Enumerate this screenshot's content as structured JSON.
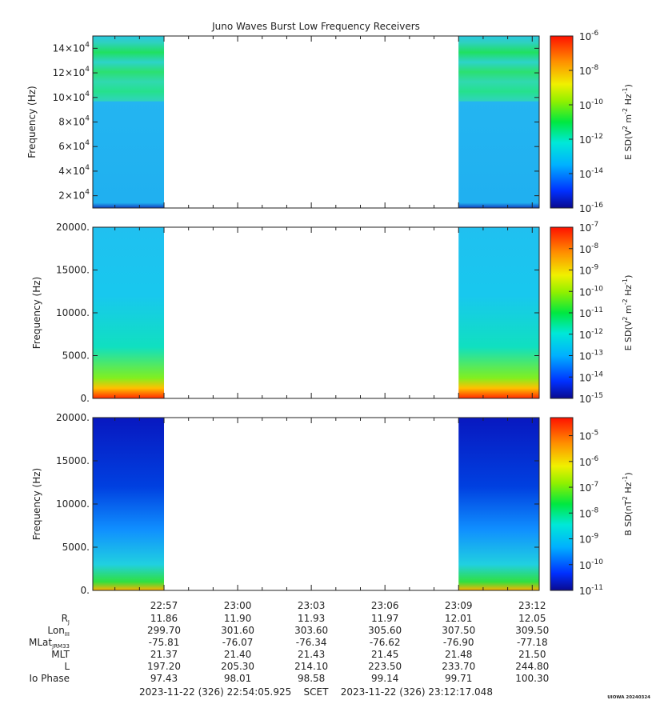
{
  "title": "Juno Waves Burst Low Frequency Receivers",
  "chart_data": [
    {
      "type": "heatmap",
      "panel": "top",
      "ylabel": "Frequency (Hz)",
      "ylim": [
        10000,
        150000
      ],
      "yticks": [
        {
          "value": 20000,
          "mant": "2",
          "exp": "4"
        },
        {
          "value": 40000,
          "mant": "4",
          "exp": "4"
        },
        {
          "value": 60000,
          "mant": "6",
          "exp": "4"
        },
        {
          "value": 80000,
          "mant": "8",
          "exp": "4"
        },
        {
          "value": 100000,
          "mant": "10",
          "exp": "4"
        },
        {
          "value": 120000,
          "mant": "12",
          "exp": "4"
        },
        {
          "value": 140000,
          "mant": "14",
          "exp": "4"
        }
      ],
      "colorbar": {
        "label_prefix": "E SD(V",
        "label_sup1": "2",
        "label_mid": " m",
        "label_sup2": "-2",
        "label_mid2": " Hz",
        "label_sup3": "-1",
        "label_suffix": ")",
        "log_range": [
          -16,
          -6
        ],
        "tick_exponents": [
          -16,
          -14,
          -12,
          -10,
          -8,
          -6
        ]
      }
    },
    {
      "type": "heatmap",
      "panel": "middle",
      "ylabel": "Frequency (Hz)",
      "ylim": [
        0,
        20000
      ],
      "yticks": [
        {
          "value": 0,
          "text": "0."
        },
        {
          "value": 5000,
          "text": "5000."
        },
        {
          "value": 10000,
          "text": "10000."
        },
        {
          "value": 15000,
          "text": "15000."
        },
        {
          "value": 20000,
          "text": "20000."
        }
      ],
      "colorbar": {
        "label_prefix": "E SD(V",
        "label_sup1": "2",
        "label_mid": " m",
        "label_sup2": "-2",
        "label_mid2": " Hz",
        "label_sup3": "-1",
        "label_suffix": ")",
        "log_range": [
          -15,
          -7
        ],
        "tick_exponents": [
          -15,
          -14,
          -13,
          -12,
          -11,
          -10,
          -9,
          -8,
          -7
        ]
      }
    },
    {
      "type": "heatmap",
      "panel": "bottom",
      "ylabel": "Frequency (Hz)",
      "ylim": [
        0,
        20000
      ],
      "yticks": [
        {
          "value": 0,
          "text": "0."
        },
        {
          "value": 5000,
          "text": "5000."
        },
        {
          "value": 10000,
          "text": "10000."
        },
        {
          "value": 15000,
          "text": "15000."
        },
        {
          "value": 20000,
          "text": "20000."
        }
      ],
      "colorbar": {
        "label_prefix": "B SD(nT",
        "label_sup1": "2",
        "label_mid": " Hz",
        "label_sup2": "-1",
        "label_mid2": "",
        "label_sup3": "",
        "label_suffix": ")",
        "log_range": [
          -11,
          -4.3
        ],
        "tick_exponents": [
          -11,
          -10,
          -9,
          -8,
          -7,
          -6,
          -5
        ]
      }
    }
  ],
  "time_axis": {
    "start_minutes": 1374.0988,
    "end_minutes": 1392.2841,
    "ticks": [
      {
        "minutes": 1377,
        "label": "22:57"
      },
      {
        "minutes": 1380,
        "label": "23:00"
      },
      {
        "minutes": 1383,
        "label": "23:03"
      },
      {
        "minutes": 1386,
        "label": "23:06"
      },
      {
        "minutes": 1389,
        "label": "23:09"
      },
      {
        "minutes": 1392,
        "label": "23:12"
      }
    ],
    "data_coverage_minutes": [
      [
        1374.0988,
        1377.0
      ],
      [
        1389.0,
        1392.2841
      ]
    ]
  },
  "ephemeris": {
    "rows": [
      {
        "label": "R",
        "sub": "J",
        "values": [
          "11.86",
          "11.90",
          "11.93",
          "11.97",
          "12.01",
          "12.05"
        ]
      },
      {
        "label": "Lon",
        "sub": "III",
        "values": [
          "299.70",
          "301.60",
          "303.60",
          "305.60",
          "307.50",
          "309.50"
        ]
      },
      {
        "label": "MLat",
        "sub": "JRM33",
        "values": [
          "-75.81",
          "-76.07",
          "-76.34",
          "-76.62",
          "-76.90",
          "-77.18"
        ]
      },
      {
        "label": "MLT",
        "sub": "",
        "values": [
          "21.37",
          "21.40",
          "21.43",
          "21.45",
          "21.48",
          "21.50"
        ]
      },
      {
        "label": "L",
        "sub": "",
        "values": [
          "197.20",
          "205.30",
          "214.10",
          "223.50",
          "233.70",
          "244.80"
        ]
      },
      {
        "label": "Io Phase",
        "sub": "",
        "values": [
          "97.43",
          "98.01",
          "98.58",
          "99.14",
          "99.71",
          "100.30"
        ]
      }
    ]
  },
  "footer": {
    "time_range": "2023-11-22 (326) 22:54:05.925    SCET    2023-11-22 (326) 23:12:17.048",
    "credit": "UIOWA 20240324"
  }
}
